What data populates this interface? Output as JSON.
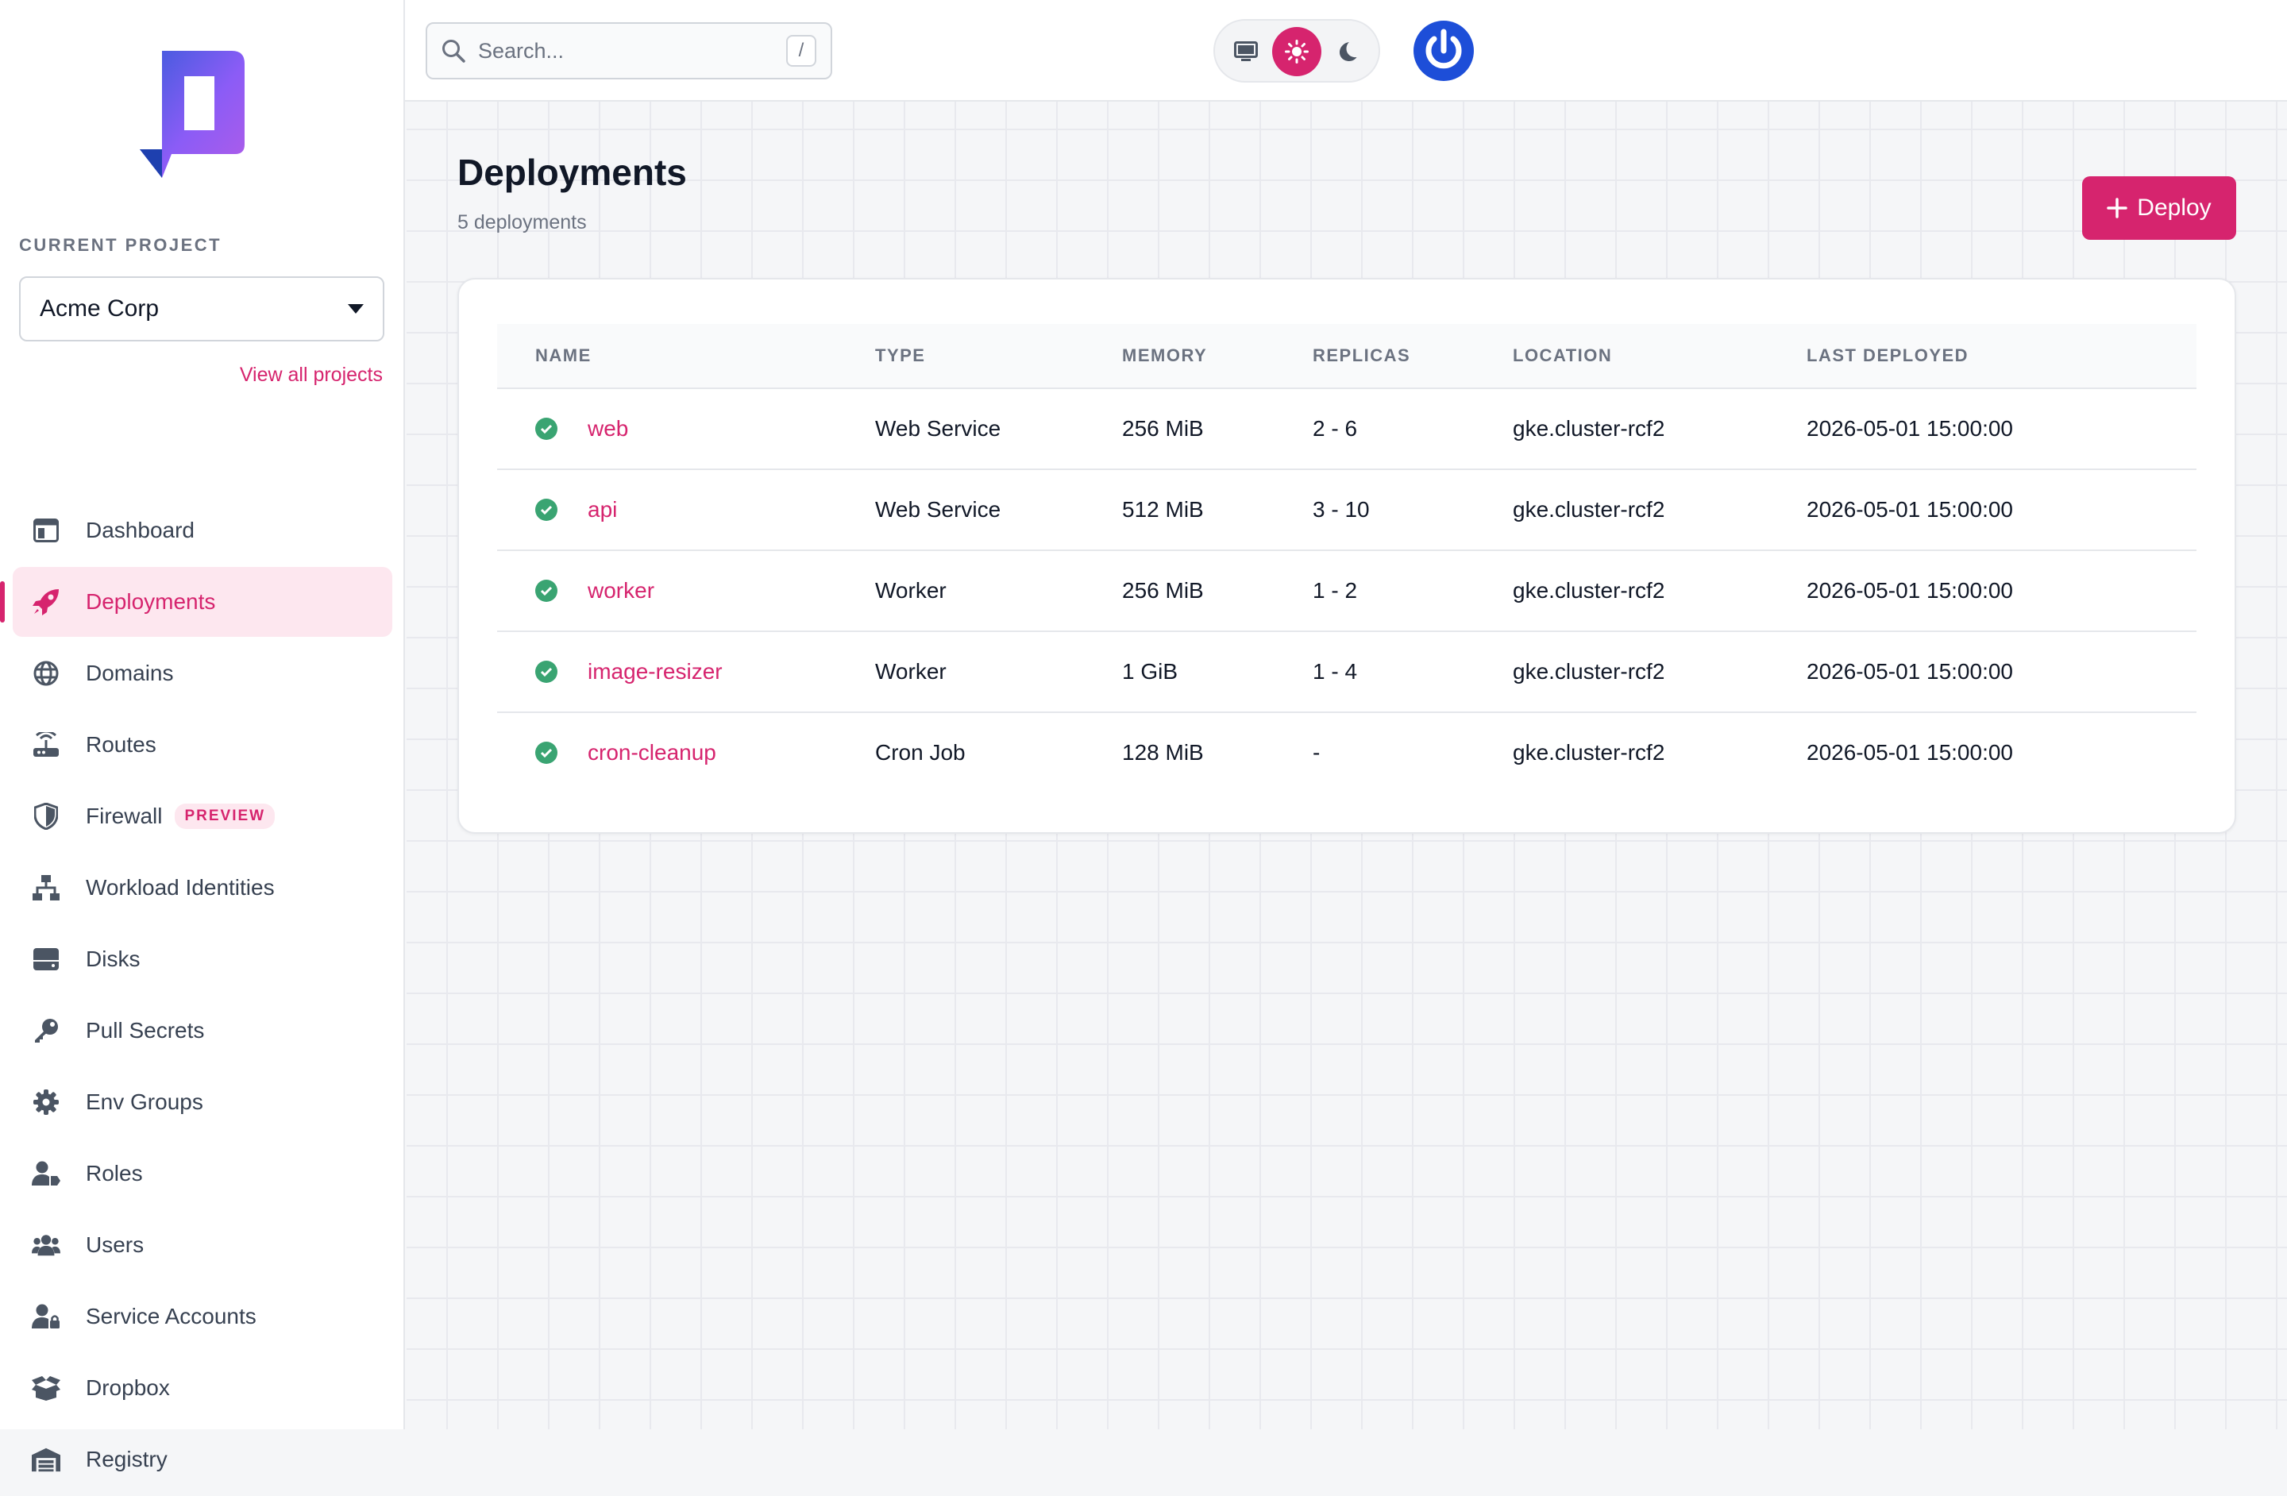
{
  "sidebar": {
    "current_project_label": "CURRENT PROJECT",
    "project": "Acme Corp",
    "view_all": "View all projects",
    "items": [
      {
        "label": "Dashboard",
        "icon": "dashboard-icon"
      },
      {
        "label": "Deployments",
        "icon": "rocket-icon",
        "active": true
      },
      {
        "label": "Domains",
        "icon": "globe-icon"
      },
      {
        "label": "Routes",
        "icon": "router-icon"
      },
      {
        "label": "Firewall",
        "icon": "shield-icon",
        "badge": "PREVIEW"
      },
      {
        "label": "Workload Identities",
        "icon": "network-icon"
      },
      {
        "label": "Disks",
        "icon": "disk-icon"
      },
      {
        "label": "Pull Secrets",
        "icon": "key-icon"
      },
      {
        "label": "Env Groups",
        "icon": "gear-icon"
      },
      {
        "label": "Roles",
        "icon": "user-tag-icon"
      },
      {
        "label": "Users",
        "icon": "users-icon"
      },
      {
        "label": "Service Accounts",
        "icon": "user-lock-icon"
      },
      {
        "label": "Dropbox",
        "icon": "box-icon"
      },
      {
        "label": "Registry",
        "icon": "warehouse-icon"
      }
    ]
  },
  "topbar": {
    "search_placeholder": "Search...",
    "search_shortcut": "/",
    "theme_options": [
      "system",
      "light",
      "dark"
    ],
    "theme_selected": "light"
  },
  "main": {
    "title": "Deployments",
    "subtitle": "5 deployments",
    "deploy_button": "Deploy",
    "table": {
      "columns": [
        "NAME",
        "TYPE",
        "MEMORY",
        "REPLICAS",
        "LOCATION",
        "LAST DEPLOYED"
      ],
      "rows": [
        {
          "name": "web",
          "type": "Web Service",
          "memory": "256 MiB",
          "replicas": "2 - 6",
          "location": "gke.cluster-rcf2",
          "last_deployed": "2026-05-01 15:00:00",
          "status": "ok"
        },
        {
          "name": "api",
          "type": "Web Service",
          "memory": "512 MiB",
          "replicas": "3 - 10",
          "location": "gke.cluster-rcf2",
          "last_deployed": "2026-05-01 15:00:00",
          "status": "ok"
        },
        {
          "name": "worker",
          "type": "Worker",
          "memory": "256 MiB",
          "replicas": "1 - 2",
          "location": "gke.cluster-rcf2",
          "last_deployed": "2026-05-01 15:00:00",
          "status": "ok"
        },
        {
          "name": "image-resizer",
          "type": "Worker",
          "memory": "1 GiB",
          "replicas": "1 - 4",
          "location": "gke.cluster-rcf2",
          "last_deployed": "2026-05-01 15:00:00",
          "status": "ok"
        },
        {
          "name": "cron-cleanup",
          "type": "Cron Job",
          "memory": "128 MiB",
          "replicas": "-",
          "location": "gke.cluster-rcf2",
          "last_deployed": "2026-05-01 15:00:00",
          "status": "ok"
        }
      ]
    }
  },
  "colors": {
    "accent": "#d6246e",
    "accent_soft": "#fde7ef",
    "success": "#3aa472",
    "brand_blue": "#1d4ed8",
    "brand_purple": "#9b59e6"
  }
}
